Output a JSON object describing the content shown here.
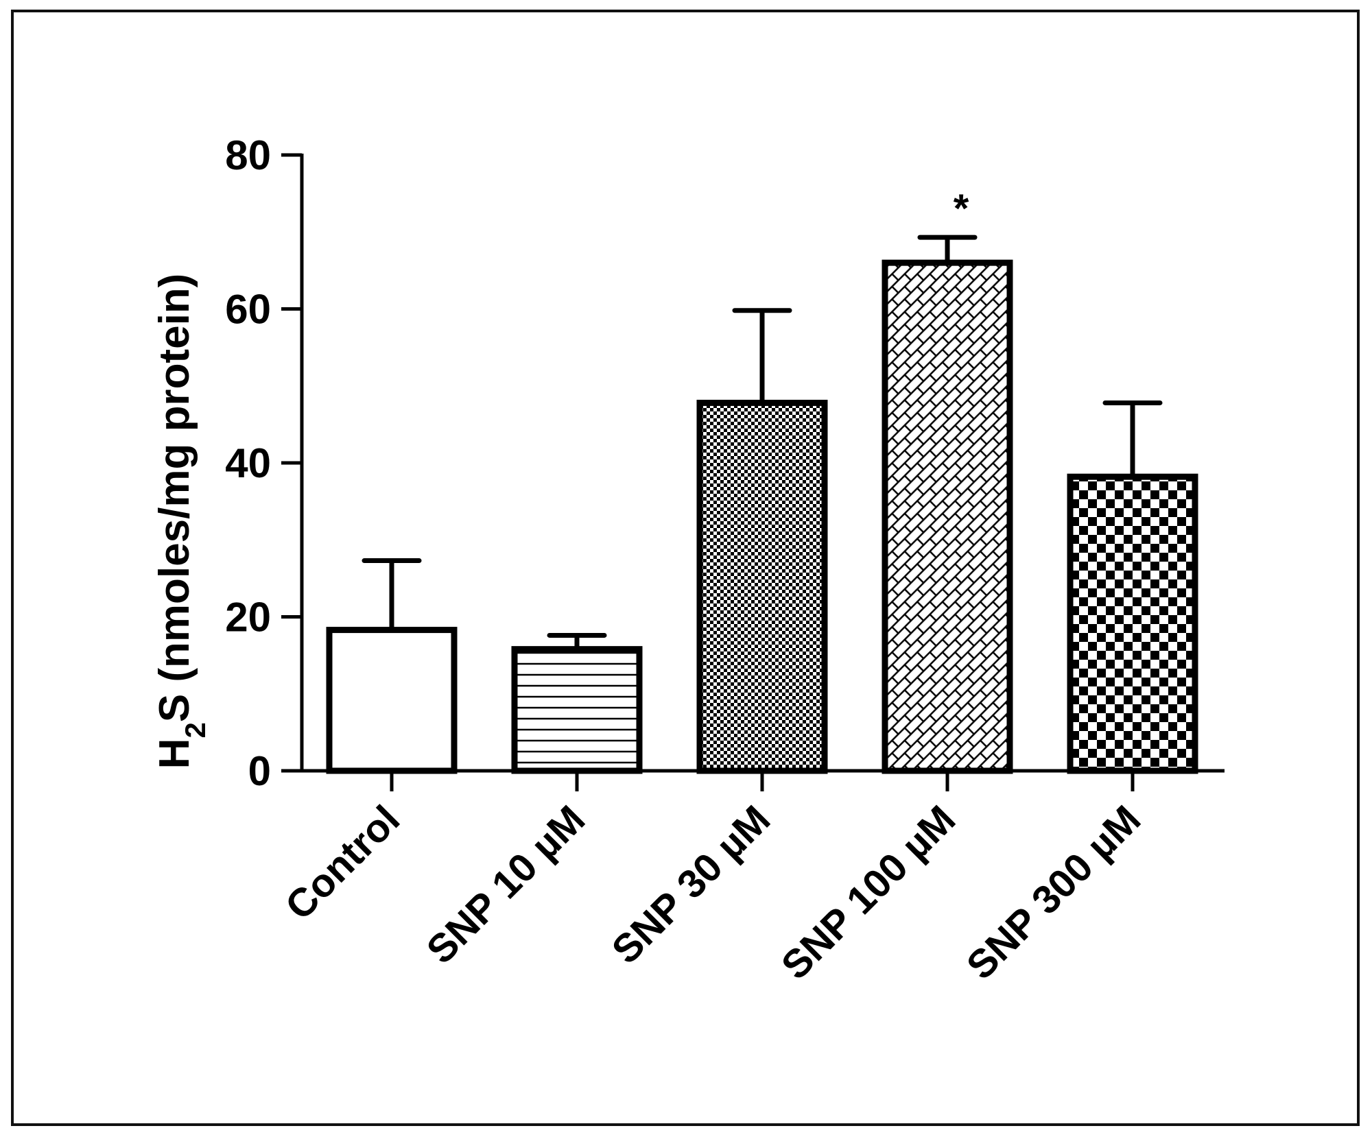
{
  "chart_data": {
    "type": "bar",
    "title": "",
    "xlabel": "",
    "ylabel": {
      "prefix": "H",
      "subscript": "2",
      "suffix": "S (nmoles/mg protein)"
    },
    "ylim": [
      0,
      80
    ],
    "yticks": [
      0,
      20,
      40,
      60,
      80
    ],
    "categories": [
      "Control",
      "SNP 10 µM",
      "SNP 30 µM",
      "SNP 100 µM",
      "SNP 300 µM"
    ],
    "values": [
      18.3,
      15.8,
      47.8,
      66.0,
      38.2
    ],
    "errors": [
      9.0,
      1.8,
      12.0,
      3.3,
      9.6
    ],
    "patterns": [
      "none",
      "horizontal",
      "fine-check",
      "diagonal-brick",
      "coarse-check"
    ],
    "annotations": [
      {
        "category_index": 3,
        "text": "*"
      }
    ],
    "grid": false,
    "colors": {
      "stroke": "#000000",
      "fill": "#ffffff"
    }
  }
}
